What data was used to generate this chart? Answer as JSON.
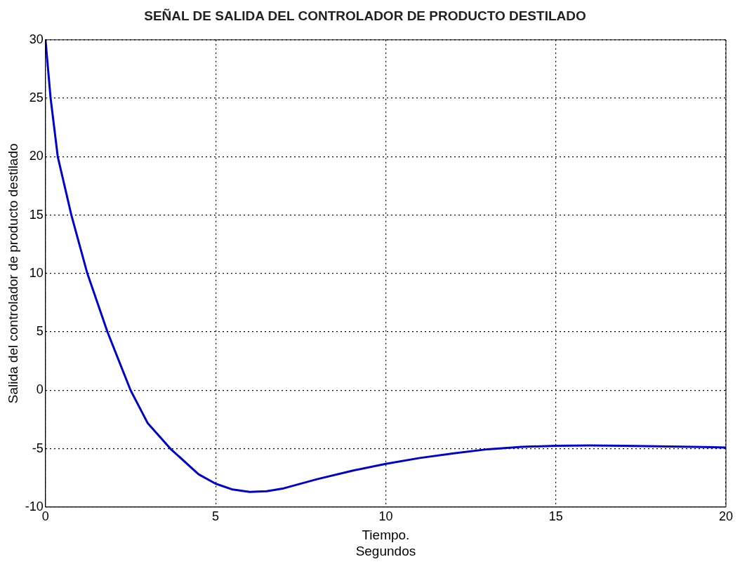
{
  "chart_data": {
    "type": "line",
    "title": "SEÑAL DE SALIDA DEL CONTROLADOR DE PRODUCTO DESTILADO",
    "xlabel": "Tiempo.\nSegundos",
    "ylabel": "Salida del controlador de producto destilado",
    "x": [
      0,
      0.15,
      0.36,
      0.76,
      1.23,
      1.82,
      2.5,
      3,
      3.67,
      4.5,
      5,
      5.5,
      6,
      6.5,
      7,
      8,
      9,
      10,
      11,
      12,
      13,
      14,
      15,
      16,
      17,
      18,
      19,
      20
    ],
    "series": [
      {
        "color": "#0000cc",
        "values": [
          30,
          25,
          20,
          15,
          10,
          5,
          0,
          -2.8,
          -5,
          -7.2,
          -8,
          -8.5,
          -8.7,
          -8.65,
          -8.4,
          -7.6,
          -6.9,
          -6.3,
          -5.8,
          -5.4,
          -5.05,
          -4.85,
          -4.75,
          -4.72,
          -4.75,
          -4.8,
          -4.85,
          -4.9
        ]
      }
    ],
    "xlim": [
      0,
      20
    ],
    "xticks": [
      0,
      5,
      10,
      15,
      20
    ],
    "ylim": [
      -10,
      30
    ],
    "yticks": [
      -10,
      -5,
      0,
      5,
      10,
      15,
      20,
      25,
      30
    ],
    "grid": true,
    "legend": false,
    "marker": "none",
    "line_style": "solid"
  }
}
